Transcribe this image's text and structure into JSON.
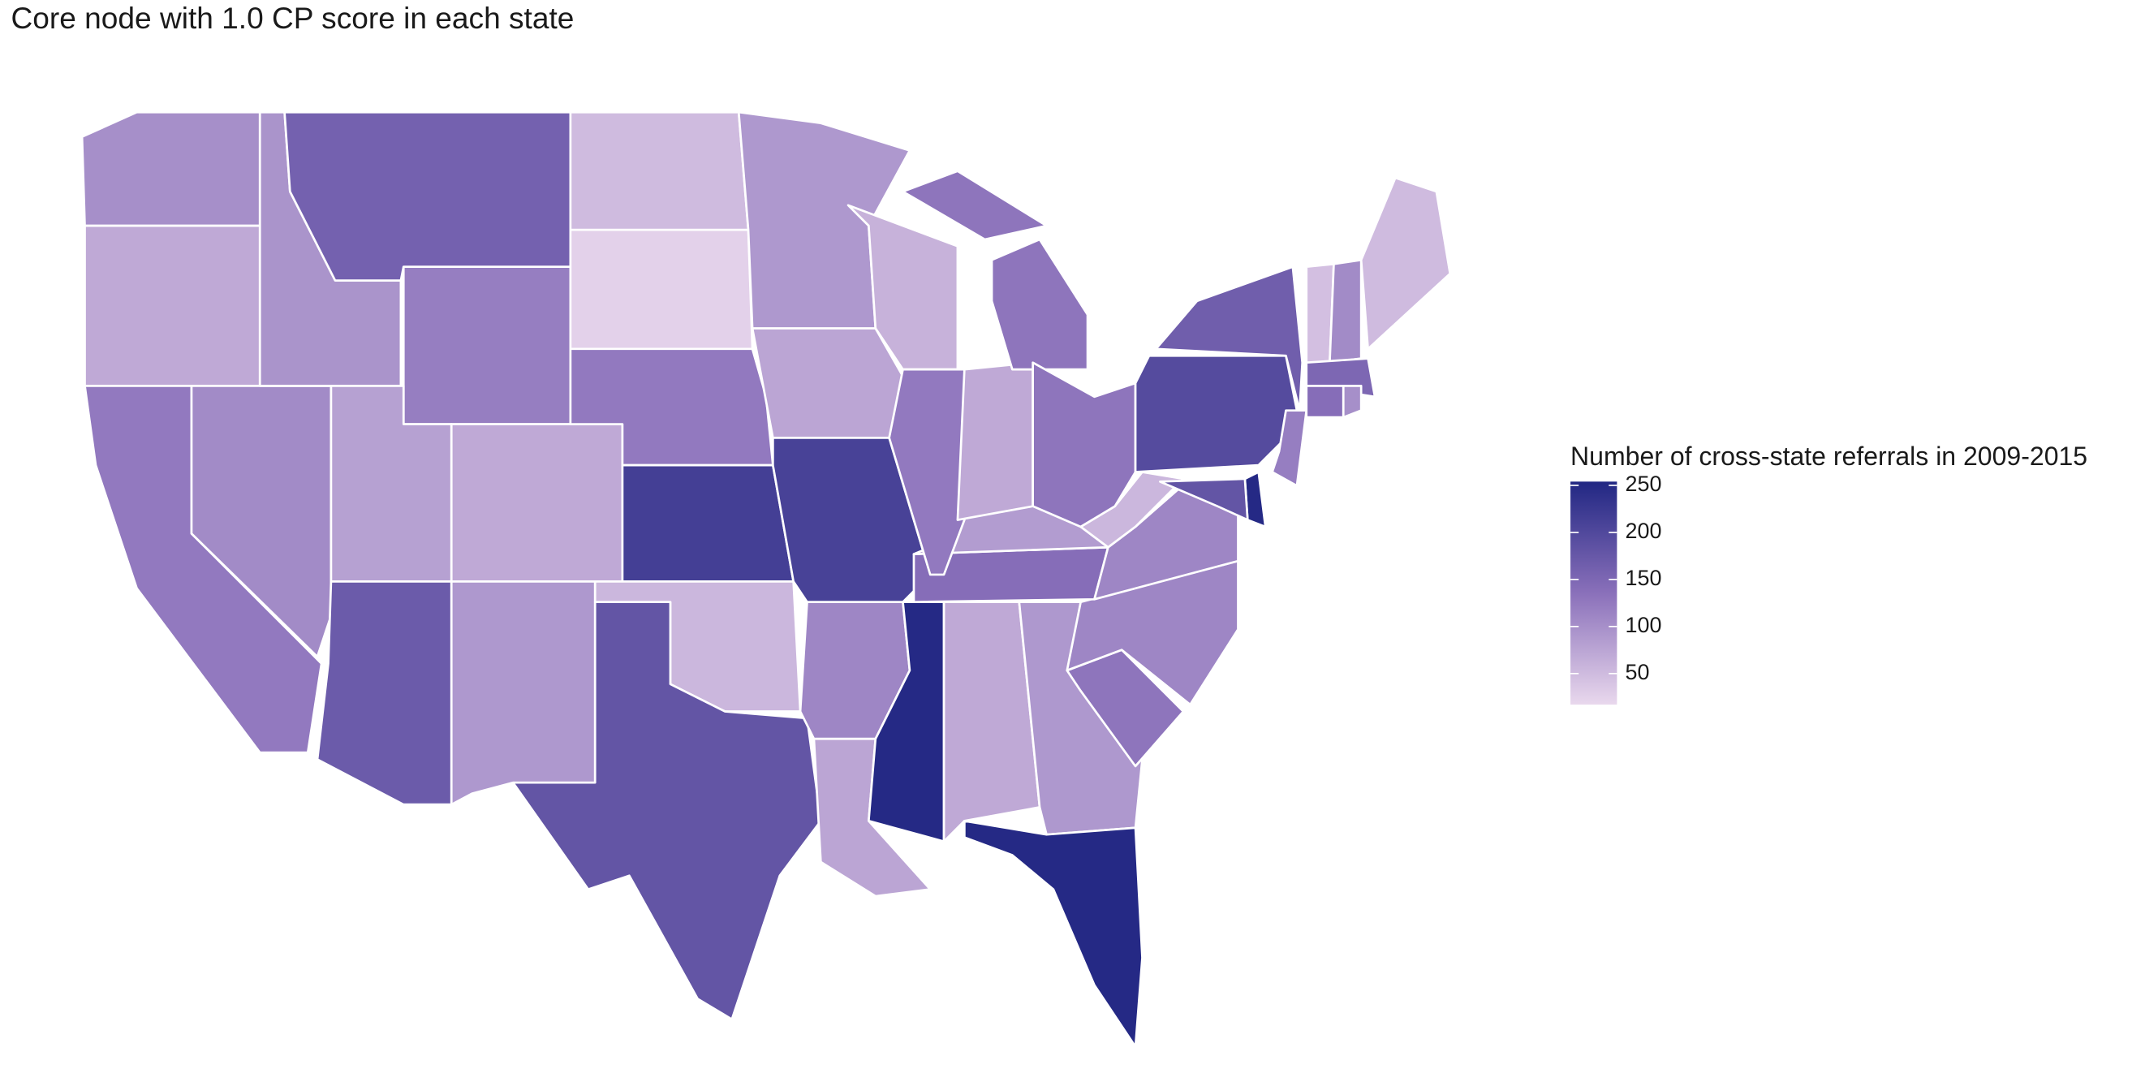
{
  "chart_data": {
    "type": "choropleth",
    "title": "Core node with 1.0 CP score in each state",
    "legend_title": "Number of cross-state referrals in 2009-2015",
    "values": [
      100,
      70,
      125,
      105,
      95,
      160,
      120,
      80,
      70,
      170,
      90,
      50,
      25,
      125,
      215,
      55,
      180,
      90,
      75,
      210,
      110,
      75,
      250,
      70,
      90,
      250,
      130,
      110,
      140,
      85,
      110,
      55,
      60,
      125,
      70,
      130,
      130,
      195,
      165,
      120,
      250,
      180,
      45,
      105,
      50,
      150,
      140,
      100
    ],
    "colorlim": [
      17,
      254
    ],
    "colorticks": [
      50,
      100,
      150,
      200,
      250
    ],
    "colors": [
      "#e9d8ed",
      "#8a70ba",
      "#212783"
    ],
    "border_color": "#ffffff"
  }
}
